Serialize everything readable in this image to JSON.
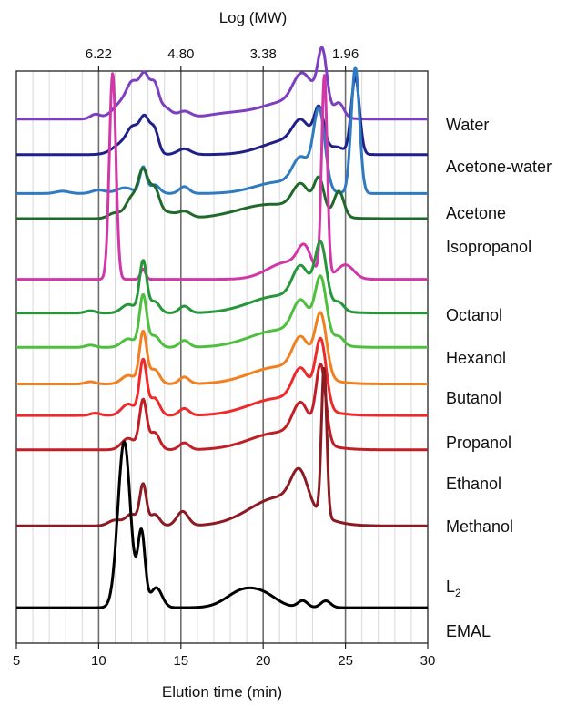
{
  "chart_data": {
    "type": "line",
    "title": "",
    "xlabel": "Elution time (min)",
    "ylabel": "",
    "xlim": [
      5,
      30
    ],
    "xticks": [
      5,
      10,
      15,
      20,
      25,
      30
    ],
    "x_minor_step": 1,
    "top_axis": {
      "label": "Log (MW)",
      "tick_labels": [
        "6.22",
        "4.80",
        "3.38",
        "1.96"
      ],
      "positions": [
        10,
        15,
        20,
        25
      ]
    },
    "grid": true,
    "legend_placement": "right, aligned with each trace",
    "series": [
      {
        "name": "Water",
        "color": "#7b3fbf",
        "baseline": 0.916,
        "peaks": [
          [
            9.8,
            0.008,
            0.3
          ],
          [
            11.5,
            0.03,
            0.6
          ],
          [
            12.1,
            0.045,
            0.35
          ],
          [
            12.8,
            0.07,
            0.3
          ],
          [
            13.4,
            0.05,
            0.25
          ],
          [
            14.0,
            0.02,
            0.4
          ],
          [
            15.2,
            0.012,
            0.4
          ],
          [
            18.0,
            0.01,
            1.5
          ],
          [
            21.5,
            0.03,
            1.5
          ],
          [
            22.3,
            0.05,
            0.5
          ],
          [
            23.0,
            0.02,
            0.4
          ],
          [
            23.6,
            0.105,
            0.28
          ],
          [
            24.6,
            0.025,
            0.3
          ]
        ]
      },
      {
        "name": "Acetone-water",
        "color": "#20208a",
        "baseline": 0.854,
        "peaks": [
          [
            11.5,
            0.02,
            0.6
          ],
          [
            12.1,
            0.035,
            0.35
          ],
          [
            12.8,
            0.06,
            0.3
          ],
          [
            13.4,
            0.04,
            0.25
          ],
          [
            15.2,
            0.01,
            0.4
          ],
          [
            21.5,
            0.025,
            1.5
          ],
          [
            22.3,
            0.04,
            0.5
          ],
          [
            23.4,
            0.07,
            0.3
          ],
          [
            24.5,
            0.01,
            0.4
          ],
          [
            25.6,
            0.135,
            0.25
          ]
        ]
      },
      {
        "name": "Acetone",
        "color": "#2f7ac0",
        "baseline": 0.786,
        "peaks": [
          [
            7.8,
            0.004,
            0.4
          ],
          [
            10.0,
            0.006,
            0.4
          ],
          [
            11.6,
            0.01,
            0.5
          ],
          [
            12.7,
            0.045,
            0.2
          ],
          [
            13.4,
            0.015,
            0.3
          ],
          [
            15.2,
            0.012,
            0.3
          ],
          [
            21.0,
            0.02,
            1.5
          ],
          [
            22.3,
            0.05,
            0.5
          ],
          [
            23.4,
            0.14,
            0.35
          ],
          [
            25.6,
            0.22,
            0.25
          ]
        ]
      },
      {
        "name": "Isopropanol",
        "color": "#1f6a2a",
        "baseline": 0.742,
        "peaks": [
          [
            11.0,
            0.01,
            0.4
          ],
          [
            12.0,
            0.035,
            0.35
          ],
          [
            12.7,
            0.08,
            0.3
          ],
          [
            13.4,
            0.05,
            0.3
          ],
          [
            14.2,
            0.01,
            0.4
          ],
          [
            15.2,
            0.012,
            0.4
          ],
          [
            20.5,
            0.025,
            2.0
          ],
          [
            22.3,
            0.045,
            0.5
          ],
          [
            23.4,
            0.06,
            0.3
          ],
          [
            24.6,
            0.045,
            0.3
          ]
        ]
      },
      {
        "name": "Octanol",
        "color": "#d038a8",
        "baseline": 0.636,
        "peaks": [
          [
            10.85,
            0.36,
            0.2
          ],
          [
            12.7,
            0.018,
            0.15
          ],
          [
            21.5,
            0.03,
            1.2
          ],
          [
            22.5,
            0.04,
            0.4
          ],
          [
            23.72,
            0.35,
            0.17
          ],
          [
            25.0,
            0.025,
            0.5
          ]
        ]
      },
      {
        "name": "Hexanol",
        "color": "#27963a",
        "baseline": 0.577,
        "peaks": [
          [
            9.5,
            0.004,
            0.3
          ],
          [
            11.8,
            0.015,
            0.4
          ],
          [
            12.7,
            0.09,
            0.22
          ],
          [
            13.4,
            0.02,
            0.3
          ],
          [
            15.2,
            0.012,
            0.3
          ],
          [
            21.0,
            0.03,
            1.8
          ],
          [
            22.3,
            0.06,
            0.5
          ],
          [
            23.5,
            0.11,
            0.35
          ],
          [
            24.6,
            0.015,
            0.3
          ]
        ]
      },
      {
        "name": "Butanol",
        "color": "#4fbf3e",
        "baseline": 0.517,
        "peaks": [
          [
            9.5,
            0.004,
            0.3
          ],
          [
            11.8,
            0.015,
            0.4
          ],
          [
            12.7,
            0.09,
            0.22
          ],
          [
            13.4,
            0.02,
            0.3
          ],
          [
            15.2,
            0.012,
            0.3
          ],
          [
            21.0,
            0.03,
            1.8
          ],
          [
            22.3,
            0.06,
            0.5
          ],
          [
            23.5,
            0.11,
            0.35
          ],
          [
            24.6,
            0.015,
            0.3
          ]
        ]
      },
      {
        "name": "Propanol",
        "color": "#f08020",
        "baseline": 0.453,
        "peaks": [
          [
            9.5,
            0.004,
            0.3
          ],
          [
            11.8,
            0.015,
            0.4
          ],
          [
            12.7,
            0.09,
            0.22
          ],
          [
            13.4,
            0.025,
            0.3
          ],
          [
            15.2,
            0.012,
            0.3
          ],
          [
            21.0,
            0.03,
            1.8
          ],
          [
            22.3,
            0.06,
            0.5
          ],
          [
            23.5,
            0.11,
            0.35
          ]
        ]
      },
      {
        "name": "Ethanol",
        "color": "#ee2a2a",
        "baseline": 0.398,
        "peaks": [
          [
            9.8,
            0.004,
            0.3
          ],
          [
            11.8,
            0.02,
            0.4
          ],
          [
            12.7,
            0.095,
            0.22
          ],
          [
            13.4,
            0.03,
            0.3
          ],
          [
            15.2,
            0.012,
            0.3
          ],
          [
            21.0,
            0.03,
            1.8
          ],
          [
            22.3,
            0.06,
            0.5
          ],
          [
            23.5,
            0.12,
            0.33
          ]
        ]
      },
      {
        "name": "Methanol",
        "color": "#c02025",
        "baseline": 0.338,
        "peaks": [
          [
            11.8,
            0.02,
            0.4
          ],
          [
            12.7,
            0.085,
            0.22
          ],
          [
            13.4,
            0.03,
            0.3
          ],
          [
            15.2,
            0.012,
            0.3
          ],
          [
            21.0,
            0.03,
            1.8
          ],
          [
            22.3,
            0.06,
            0.5
          ],
          [
            23.5,
            0.135,
            0.3
          ]
        ]
      },
      {
        "name": "L<sub>2</sub>",
        "label_main": "L",
        "label_sub": "2",
        "color": "#8b1a22",
        "baseline": 0.205,
        "peaks": [
          [
            11.0,
            0.01,
            0.4
          ],
          [
            12.0,
            0.02,
            0.35
          ],
          [
            12.7,
            0.07,
            0.2
          ],
          [
            13.4,
            0.02,
            0.3
          ],
          [
            15.1,
            0.025,
            0.35
          ],
          [
            21.0,
            0.05,
            1.8
          ],
          [
            22.2,
            0.06,
            0.5
          ],
          [
            23.7,
            0.26,
            0.16
          ]
        ]
      },
      {
        "name": "EMAL",
        "color": "#000000",
        "baseline": 0.062,
        "peaks": [
          [
            11.55,
            0.29,
            0.38
          ],
          [
            12.6,
            0.13,
            0.22
          ],
          [
            13.5,
            0.035,
            0.35
          ],
          [
            18.8,
            0.03,
            1.0
          ],
          [
            20.2,
            0.015,
            0.8
          ],
          [
            22.4,
            0.012,
            0.3
          ],
          [
            23.8,
            0.012,
            0.3
          ]
        ]
      }
    ],
    "legend_labels": [
      "Water",
      "Acetone-water",
      "Acetone",
      "Isopropanol",
      "Octanol",
      "Hexanol",
      "Butanol",
      "Propanol",
      "Ethanol",
      "Methanol",
      "L",
      "EMAL"
    ]
  }
}
